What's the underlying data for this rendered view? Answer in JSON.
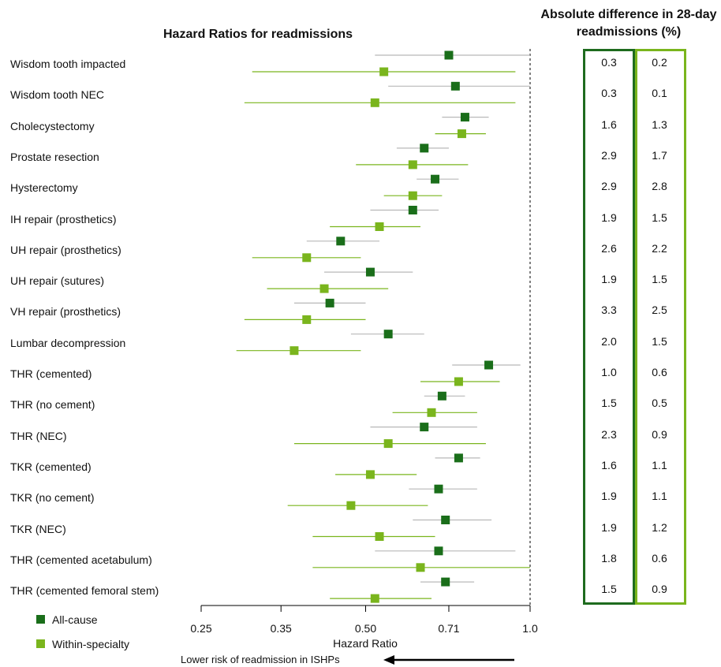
{
  "chart_data": {
    "type": "forest",
    "title": "Hazard Ratios for readmissions",
    "xlabel": "Hazard Ratio",
    "xscale": "log",
    "xlim": [
      0.25,
      1.0
    ],
    "xticks": [
      "0.25",
      "0.35",
      "0.50",
      "0.71",
      "1.0"
    ],
    "xtick_values": [
      0.25,
      0.35,
      0.5,
      0.71,
      1.0
    ],
    "reference_line": 1.0,
    "arrow_label": "Lower risk of readmission in ISHPs",
    "categories": [
      "Wisdom tooth impacted",
      "Wisdom tooth NEC",
      "Cholecystectomy",
      "Prostate resection",
      "Hysterectomy",
      "IH repair (prosthetics)",
      "UH repair (prosthetics)",
      "UH repair (sutures)",
      "VH repair (prosthetics)",
      "Lumbar decompression",
      "THR (cemented)",
      "THR (no cement)",
      "THR (NEC)",
      "TKR (cemented)",
      "TKR (no cement)",
      "TKR (NEC)",
      "THR (cemented acetabulum)",
      "THR (cemented femoral stem)"
    ],
    "series": [
      {
        "name": "All-cause",
        "color": "#1a6e1a",
        "hr": [
          0.71,
          0.73,
          0.76,
          0.64,
          0.67,
          0.61,
          0.45,
          0.51,
          0.43,
          0.55,
          0.84,
          0.69,
          0.64,
          0.74,
          0.68,
          0.7,
          0.68,
          0.7
        ],
        "lower": [
          0.52,
          0.55,
          0.69,
          0.57,
          0.62,
          0.51,
          0.39,
          0.42,
          0.37,
          0.47,
          0.72,
          0.64,
          0.51,
          0.67,
          0.6,
          0.61,
          0.52,
          0.63
        ],
        "upper": [
          1.0,
          1.0,
          0.84,
          0.71,
          0.74,
          0.68,
          0.53,
          0.61,
          0.5,
          0.64,
          0.96,
          0.76,
          0.8,
          0.81,
          0.8,
          0.85,
          0.94,
          0.79
        ]
      },
      {
        "name": "Within-specialty",
        "color": "#7ab51d",
        "hr": [
          0.54,
          0.52,
          0.75,
          0.61,
          0.61,
          0.53,
          0.39,
          0.42,
          0.39,
          0.37,
          0.74,
          0.66,
          0.55,
          0.51,
          0.47,
          0.53,
          0.63,
          0.52
        ],
        "lower": [
          0.31,
          0.3,
          0.67,
          0.48,
          0.54,
          0.43,
          0.31,
          0.33,
          0.3,
          0.29,
          0.63,
          0.56,
          0.37,
          0.44,
          0.36,
          0.4,
          0.4,
          0.43
        ],
        "upper": [
          0.94,
          0.94,
          0.83,
          0.77,
          0.69,
          0.63,
          0.49,
          0.55,
          0.5,
          0.49,
          0.88,
          0.8,
          0.83,
          0.62,
          0.65,
          0.67,
          1.0,
          0.66
        ]
      }
    ],
    "legend": [
      "All-cause",
      "Within-specialty"
    ],
    "table": {
      "title": "Absolute difference in 28-day readmissions (%)",
      "all_cause": [
        "0.3",
        "0.3",
        "1.6",
        "2.9",
        "2.9",
        "1.9",
        "2.6",
        "1.9",
        "3.3",
        "2.0",
        "1.0",
        "1.5",
        "2.3",
        "1.6",
        "1.9",
        "1.9",
        "1.8",
        "1.5"
      ],
      "within_specialty": [
        "0.2",
        "0.1",
        "1.3",
        "1.7",
        "2.8",
        "1.5",
        "2.2",
        "1.5",
        "2.5",
        "1.5",
        "0.6",
        "0.5",
        "0.9",
        "1.1",
        "1.1",
        "1.2",
        "0.6",
        "0.9"
      ],
      "all_cause_color": "#1e6b1e",
      "within_specialty_color": "#7ab51d"
    }
  }
}
